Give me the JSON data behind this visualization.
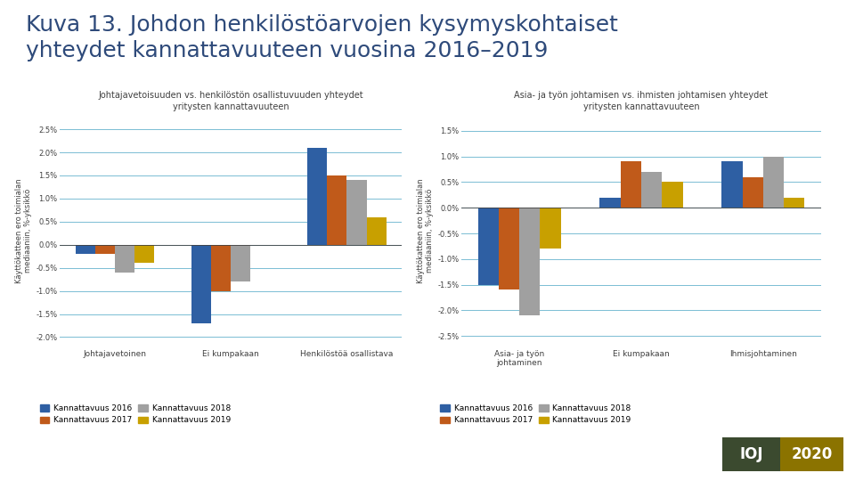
{
  "title": "Kuva 13. Johdon henkilöstöarvojen kysymyskohtaiset\nyhteydet kannattavuuteen vuosina 2016–2019",
  "chart1": {
    "title_line1": "Johtajavetoisuuden vs. henkilöstön osallistuvuuden yhteydet",
    "title_line2": "yritysten kannattavuuteen",
    "categories": [
      "Johtajavetoinen",
      "Ei kumpakaan",
      "Henkilöstöä osallistava"
    ],
    "ylabel": "Käyttökatteen ero toimialan\nmediaaniin, %-yksikkö",
    "series": {
      "Kannattavuus 2016": [
        -0.002,
        -0.017,
        0.021
      ],
      "Kannattavuus 2017": [
        -0.002,
        -0.01,
        0.015
      ],
      "Kannattavuus 2018": [
        -0.006,
        -0.008,
        0.014
      ],
      "Kannattavuus 2019": [
        -0.004,
        0.0,
        0.006
      ]
    },
    "ylim": [
      -0.022,
      0.028
    ],
    "yticks": [
      -0.02,
      -0.015,
      -0.01,
      -0.005,
      0.0,
      0.005,
      0.01,
      0.015,
      0.02,
      0.025
    ]
  },
  "chart2": {
    "title_line1": "Asia- ja työn johtamisen vs. ihmisten johtamisen yhteydet",
    "title_line2": "yritysten kannattavuuteen",
    "categories": [
      "Asia- ja työn\njohtaminen",
      "Ei kumpakaan",
      "Ihmisjohtaminen"
    ],
    "ylabel": "Käyttökatteen ero toimialan\nmediaaniin, %-yksikkö",
    "series": {
      "Kannattavuus 2016": [
        -0.015,
        0.002,
        0.009
      ],
      "Kannattavuus 2017": [
        -0.016,
        0.009,
        0.006
      ],
      "Kannattavuus 2018": [
        -0.021,
        0.007,
        0.01
      ],
      "Kannattavuus 2019": [
        -0.008,
        0.005,
        0.002
      ]
    },
    "ylim": [
      -0.027,
      0.018
    ],
    "yticks": [
      -0.025,
      -0.02,
      -0.015,
      -0.01,
      -0.005,
      0.0,
      0.005,
      0.01,
      0.015
    ]
  },
  "colors": {
    "Kannattavuus 2016": "#2E5FA3",
    "Kannattavuus 2017": "#C05A1A",
    "Kannattavuus 2018": "#A0A0A0",
    "Kannattavuus 2019": "#C8A000"
  },
  "background_color": "#FFFFFF",
  "grid_color": "#7BBDD4",
  "ioj_bg": "#3B4A2F",
  "ioj_2020_bg": "#8B7300",
  "title_color": "#2E4A7A",
  "text_color": "#404040",
  "bar_width": 0.17,
  "title_fontsize": 18,
  "chart_title_fontsize": 7,
  "tick_fontsize": 6,
  "ylabel_fontsize": 6,
  "legend_fontsize": 6.5
}
